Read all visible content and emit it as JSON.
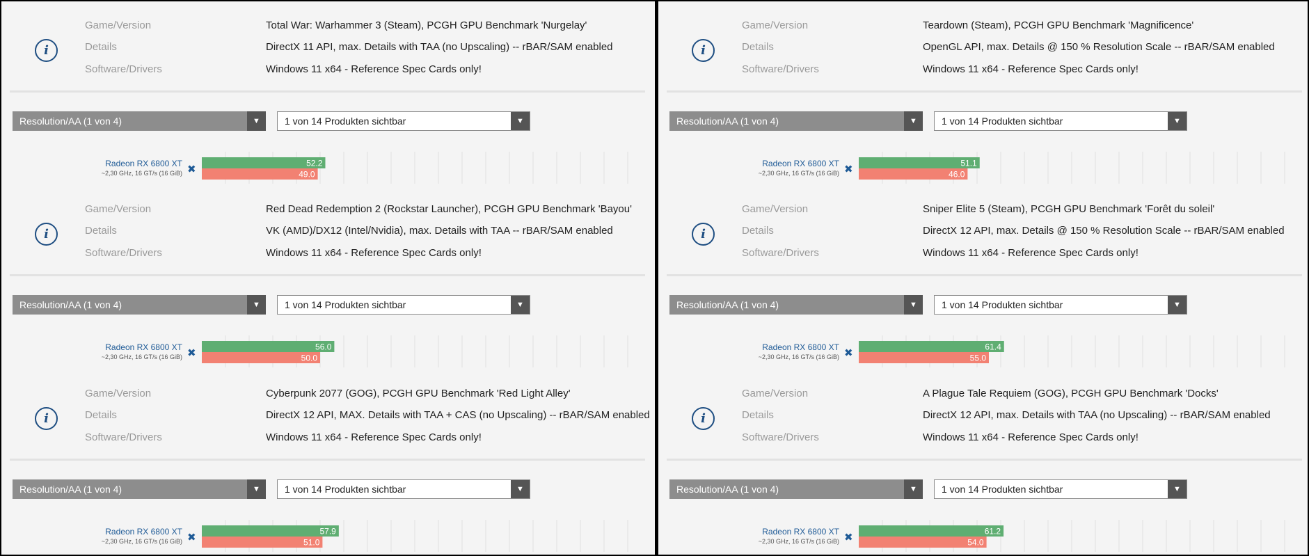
{
  "labels": {
    "game": "Game/Version",
    "details": "Details",
    "software": "Software/Drivers"
  },
  "colors": {
    "green": "#5fae72",
    "red": "#f28172",
    "accent": "#1e4e82"
  },
  "columns": [
    {
      "blocks": [
        {
          "game": "Total War: Warhammer 3 (Steam), PCGH GPU Benchmark 'Nurgelay'",
          "details": "DirectX 11 API, max. Details with TAA (no Upscaling) -- rBAR/SAM enabled",
          "software": "Windows 11 x64 - Reference Spec Cards only!",
          "resolution_select": "Resolution/AA (1 von 4)",
          "products_select": "1 von 14 Produkten sichtbar",
          "gpu_name": "Radeon RX 6800 XT",
          "gpu_spec": "~2,30 GHz, 16 GT/s (16 GiB)",
          "avg_label": "52.2",
          "min_label": "49.0",
          "chart_data": {
            "type": "bar",
            "categories": [
              "Radeon RX 6800 XT"
            ],
            "series": [
              {
                "values": [
                  52.2
                ]
              },
              {
                "values": [
                  49.0
                ]
              }
            ],
            "xlim": [
              0,
              125
            ]
          }
        },
        {
          "game": "Red Dead Redemption 2 (Rockstar Launcher), PCGH GPU Benchmark 'Bayou'",
          "details": "VK (AMD)/DX12 (Intel/Nvidia), max. Details with TAA -- rBAR/SAM enabled",
          "software": "Windows 11 x64 - Reference Spec Cards only!",
          "resolution_select": "Resolution/AA (1 von 4)",
          "products_select": "1 von 14 Produkten sichtbar",
          "gpu_name": "Radeon RX 6800 XT",
          "gpu_spec": "~2,30 GHz, 16 GT/s (16 GiB)",
          "avg_label": "56.0",
          "min_label": "50.0",
          "chart_data": {
            "type": "bar",
            "categories": [
              "Radeon RX 6800 XT"
            ],
            "series": [
              {
                "values": [
                  56.0
                ]
              },
              {
                "values": [
                  50.0
                ]
              }
            ],
            "xlim": [
              0,
              125
            ]
          }
        },
        {
          "game": "Cyberpunk 2077 (GOG), PCGH GPU Benchmark 'Red Light Alley'",
          "details": "DirectX 12 API, MAX. Details with TAA + CAS (no Upscaling) -- rBAR/SAM enabled",
          "software": "Windows 11 x64 - Reference Spec Cards only!",
          "resolution_select": "Resolution/AA (1 von 4)",
          "products_select": "1 von 14 Produkten sichtbar",
          "gpu_name": "Radeon RX 6800 XT",
          "gpu_spec": "~2,30 GHz, 16 GT/s (16 GiB)",
          "avg_label": "57.9",
          "min_label": "51.0",
          "chart_data": {
            "type": "bar",
            "categories": [
              "Radeon RX 6800 XT"
            ],
            "series": [
              {
                "values": [
                  57.9
                ]
              },
              {
                "values": [
                  51.0
                ]
              }
            ],
            "xlim": [
              0,
              125
            ]
          }
        }
      ]
    },
    {
      "blocks": [
        {
          "game": "Teardown (Steam), PCGH GPU Benchmark 'Magnificence'",
          "details": "OpenGL API, max. Details @ 150 % Resolution Scale -- rBAR/SAM enabled",
          "software": "Windows 11 x64 - Reference Spec Cards only!",
          "resolution_select": "Resolution/AA (1 von 4)",
          "products_select": "1 von 14 Produkten sichtbar",
          "gpu_name": "Radeon RX 6800 XT",
          "gpu_spec": "~2,30 GHz, 16 GT/s (16 GiB)",
          "avg_label": "51.1",
          "min_label": "46.0",
          "chart_data": {
            "type": "bar",
            "categories": [
              "Radeon RX 6800 XT"
            ],
            "series": [
              {
                "values": [
                  51.1
                ]
              },
              {
                "values": [
                  46.0
                ]
              }
            ],
            "xlim": [
              0,
              125
            ]
          }
        },
        {
          "game": "Sniper Elite 5 (Steam), PCGH GPU Benchmark 'Forêt du soleil'",
          "details": "DirectX 12 API, max. Details @ 150 % Resolution Scale -- rBAR/SAM enabled",
          "software": "Windows 11 x64 - Reference Spec Cards only!",
          "resolution_select": "Resolution/AA (1 von 4)",
          "products_select": "1 von 14 Produkten sichtbar",
          "gpu_name": "Radeon RX 6800 XT",
          "gpu_spec": "~2,30 GHz, 16 GT/s (16 GiB)",
          "avg_label": "61.4",
          "min_label": "55.0",
          "chart_data": {
            "type": "bar",
            "categories": [
              "Radeon RX 6800 XT"
            ],
            "series": [
              {
                "values": [
                  61.4
                ]
              },
              {
                "values": [
                  55.0
                ]
              }
            ],
            "xlim": [
              0,
              125
            ]
          }
        },
        {
          "game": "A Plague Tale Requiem (GOG), PCGH GPU Benchmark 'Docks'",
          "details": "DirectX 12 API, max. Details with TAA (no Upscaling) -- rBAR/SAM enabled",
          "software": "Windows 11 x64 - Reference Spec Cards only!",
          "resolution_select": "Resolution/AA (1 von 4)",
          "products_select": "1 von 14 Produkten sichtbar",
          "gpu_name": "Radeon RX 6800 XT",
          "gpu_spec": "~2,30 GHz, 16 GT/s (16 GiB)",
          "avg_label": "61.2",
          "min_label": "54.0",
          "chart_data": {
            "type": "bar",
            "categories": [
              "Radeon RX 6800 XT"
            ],
            "series": [
              {
                "values": [
                  61.2
                ]
              },
              {
                "values": [
                  54.0
                ]
              }
            ],
            "xlim": [
              0,
              125
            ]
          }
        }
      ]
    }
  ]
}
